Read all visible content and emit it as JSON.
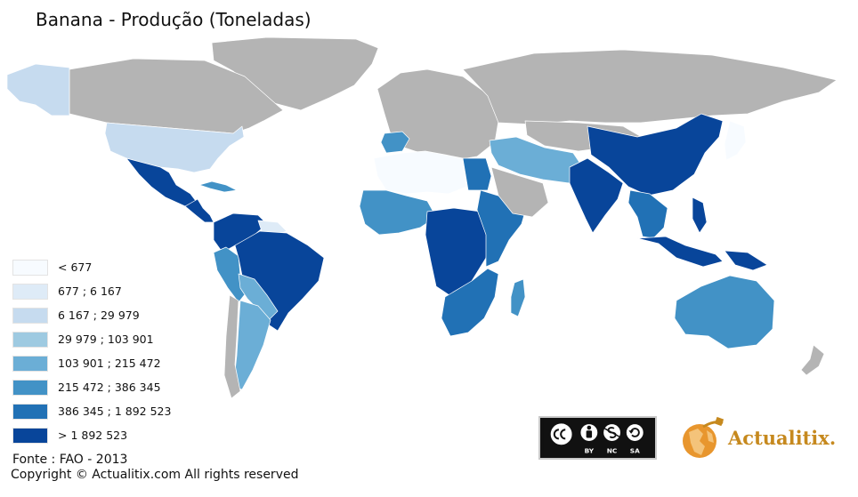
{
  "title": "Banana - Produção (Toneladas)",
  "legend": {
    "items": [
      {
        "label": "< 677",
        "color": "#f7fbff"
      },
      {
        "label": "677 ; 6 167",
        "color": "#deebf7"
      },
      {
        "label": "6 167 ; 29 979",
        "color": "#c6dbef"
      },
      {
        "label": "29 979 ; 103 901",
        "color": "#9ecae1"
      },
      {
        "label": "103 901 ; 215 472",
        "color": "#6baed6"
      },
      {
        "label": "215 472 ; 386 345",
        "color": "#4292c6"
      },
      {
        "label": "386 345 ; 1 892 523",
        "color": "#2171b5"
      },
      {
        "label": "> 1 892 523",
        "color": "#08459a"
      }
    ]
  },
  "no_data_color": "#b4b4b4",
  "map_regions": [
    {
      "region": "alaska",
      "class": 2
    },
    {
      "region": "canada",
      "class": null
    },
    {
      "region": "greenland",
      "class": null
    },
    {
      "region": "usa",
      "class": 2
    },
    {
      "region": "mexico",
      "class": 7
    },
    {
      "region": "central-america",
      "class": 7
    },
    {
      "region": "cuba",
      "class": 5
    },
    {
      "region": "colombia-venezuela",
      "class": 7
    },
    {
      "region": "guianas",
      "class": 1
    },
    {
      "region": "brazil",
      "class": 7
    },
    {
      "region": "peru",
      "class": 5
    },
    {
      "region": "bolivia-paraguay",
      "class": 4
    },
    {
      "region": "argentina",
      "class": 4
    },
    {
      "region": "chile",
      "class": null
    },
    {
      "region": "europe",
      "class": null
    },
    {
      "region": "iberia",
      "class": 5
    },
    {
      "region": "russia",
      "class": null
    },
    {
      "region": "north-africa",
      "class": 0
    },
    {
      "region": "egypt",
      "class": 6
    },
    {
      "region": "west-africa",
      "class": 5
    },
    {
      "region": "central-africa",
      "class": 7
    },
    {
      "region": "east-africa",
      "class": 6
    },
    {
      "region": "southern-africa",
      "class": 6
    },
    {
      "region": "madagascar",
      "class": 5
    },
    {
      "region": "middle-east",
      "class": 4
    },
    {
      "region": "arabia",
      "class": null
    },
    {
      "region": "central-asia",
      "class": null
    },
    {
      "region": "india",
      "class": 7
    },
    {
      "region": "china",
      "class": 7
    },
    {
      "region": "southeast-asia",
      "class": 6
    },
    {
      "region": "japan",
      "class": 0
    },
    {
      "region": "indonesia",
      "class": 7
    },
    {
      "region": "philippines",
      "class": 7
    },
    {
      "region": "new-guinea",
      "class": 7
    },
    {
      "region": "australia",
      "class": 5
    },
    {
      "region": "new-zealand",
      "class": null
    }
  ],
  "source": "Fonte : FAO - 2013",
  "copyright": "Copyright © Actualitix.com All rights reserved",
  "license": {
    "icons": [
      "cc-icon",
      "by-icon",
      "nc-icon",
      "sa-icon"
    ],
    "labels": [
      "BY",
      "NC",
      "SA"
    ]
  },
  "brand": {
    "name": "Actualitix",
    "dot": ".",
    "color": "#c6891e"
  }
}
